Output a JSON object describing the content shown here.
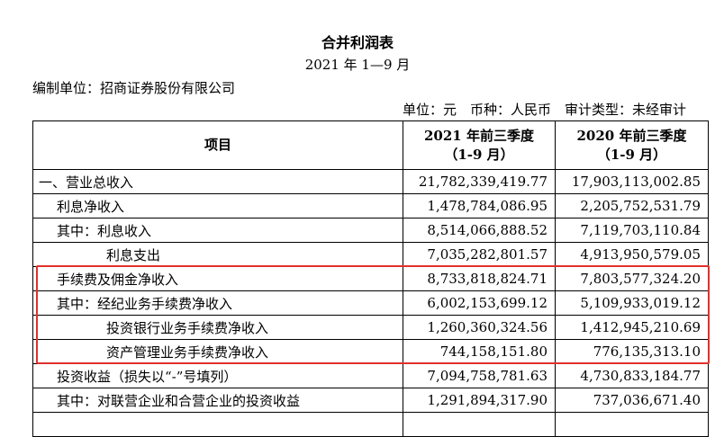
{
  "header": {
    "title": "合并利润表",
    "period": "2021 年 1—9 月",
    "entity": "编制单位：招商证券股份有限公司",
    "meta": "单位：元　币种：人民币　审计类型：未经审计"
  },
  "table": {
    "columns": [
      "项目",
      [
        "2021 年前三季度",
        "（1-9 月）"
      ],
      [
        "2020 年前三季度",
        "（1-9 月）"
      ]
    ],
    "rows": [
      [
        "一、营业总收入",
        "21,782,339,419.77",
        "17,903,113,002.85"
      ],
      [
        "利息净收入",
        "1,478,784,086.95",
        "2,205,752,531.79"
      ],
      [
        "其中：利息收入",
        "8,514,066,888.52",
        "7,119,703,110.84"
      ],
      [
        "利息支出",
        "7,035,282,801.57",
        "4,913,950,579.05"
      ],
      [
        "手续费及佣金净收入",
        "8,733,818,824.71",
        "7,803,577,324.20"
      ],
      [
        "其中：经纪业务手续费净收入",
        "6,002,153,699.12",
        "5,109,933,019.12"
      ],
      [
        "投资银行业务手续费净收入",
        "1,260,360,324.56",
        "1,412,945,210.69"
      ],
      [
        "资产管理业务手续费净收入",
        "744,158,151.80",
        "776,135,313.10"
      ],
      [
        "投资收益（损失以“-”号填列）",
        "7,094,758,781.63",
        "4,730,833,184.77"
      ],
      [
        "其中：对联营企业和合营企业的投资收益",
        "1,291,894,317.90",
        "737,036,671.40"
      ]
    ]
  }
}
